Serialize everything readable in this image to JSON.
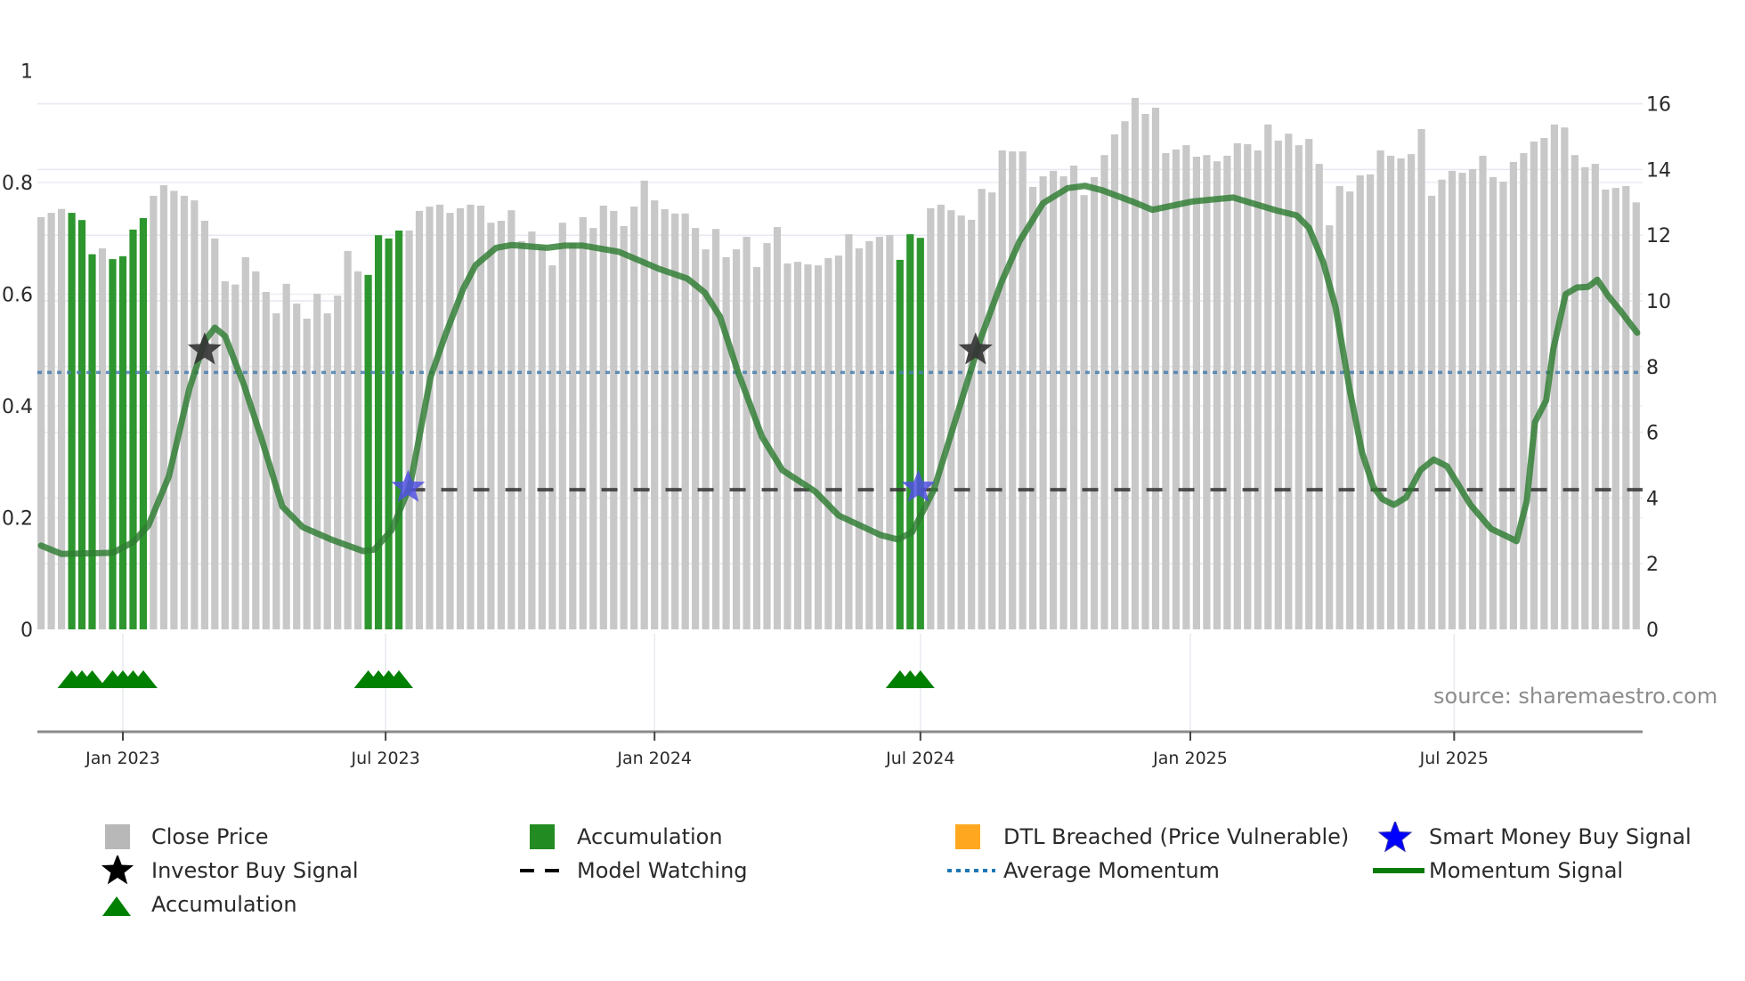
{
  "chart_data": {
    "type": "bar+line",
    "title": "",
    "xlabel": "",
    "ylabel_left": "",
    "ylabel_right": "",
    "left_axis": {
      "range": [
        0,
        1
      ],
      "ticks": [
        0,
        0.2,
        0.4,
        0.6,
        0.8,
        1
      ],
      "tick_labels": [
        "0",
        "0.2",
        "0.4",
        "0.6",
        "0.8",
        "1"
      ]
    },
    "right_axis": {
      "range": [
        0,
        16.5
      ],
      "ticks": [
        0,
        2,
        4,
        6,
        8,
        10,
        12,
        14,
        16
      ],
      "tick_labels": [
        "0",
        "2",
        "4",
        "6",
        "8",
        "10",
        "12",
        "14",
        "16"
      ]
    },
    "x_ticks": [
      {
        "label": "Jan 2023",
        "bar_pos": 9.0
      },
      {
        "label": "Jul 2023",
        "bar_pos": 34.7
      },
      {
        "label": "Jan 2024",
        "bar_pos": 61.0
      },
      {
        "label": "Jul 2024",
        "bar_pos": 87.0
      },
      {
        "label": "Jan 2025",
        "bar_pos": 113.4
      },
      {
        "label": "Jul 2025",
        "bar_pos": 139.2
      }
    ],
    "grid": true,
    "legend_position": "bottom",
    "series": [
      {
        "name": "Close Price",
        "type": "bar",
        "axis": "right",
        "color": "#c8c8c8",
        "values": [
          12.55,
          12.68,
          12.8,
          12.68,
          12.46,
          11.42,
          11.6,
          11.27,
          11.36,
          12.17,
          12.52,
          13.2,
          13.52,
          13.35,
          13.2,
          13.06,
          12.44,
          11.9,
          10.6,
          10.5,
          11.33,
          10.9,
          10.27,
          9.62,
          10.52,
          9.92,
          9.46,
          10.22,
          9.62,
          10.16,
          11.52,
          10.9,
          10.79,
          12.0,
          11.9,
          12.14,
          12.14,
          12.74,
          12.87,
          12.93,
          12.68,
          12.82,
          12.93,
          12.9,
          12.38,
          12.44,
          12.76,
          11.82,
          12.11,
          11.65,
          11.08,
          12.38,
          11.76,
          12.55,
          12.22,
          12.9,
          12.74,
          12.28,
          12.87,
          13.66,
          13.06,
          12.79,
          12.66,
          12.66,
          12.22,
          11.57,
          12.19,
          11.33,
          11.57,
          11.95,
          11.03,
          11.76,
          12.25,
          11.14,
          11.19,
          11.11,
          11.08,
          11.3,
          11.38,
          12.03,
          11.6,
          11.82,
          11.95,
          12.0,
          11.25,
          12.03,
          11.92,
          12.82,
          12.93,
          12.76,
          12.6,
          12.47,
          13.41,
          13.3,
          14.58,
          14.55,
          14.55,
          13.47,
          13.79,
          13.96,
          13.79,
          14.12,
          13.22,
          13.77,
          14.44,
          15.07,
          15.47,
          16.18,
          15.69,
          15.88,
          14.5,
          14.61,
          14.74,
          14.39,
          14.44,
          14.25,
          14.42,
          14.8,
          14.77,
          14.58,
          15.37,
          14.88,
          15.09,
          14.74,
          14.93,
          14.17,
          12.3,
          13.5,
          13.33,
          13.82,
          13.85,
          14.58,
          14.42,
          14.34,
          14.47,
          15.23,
          13.2,
          13.69,
          13.96,
          13.9,
          14.01,
          14.42,
          13.77,
          13.63,
          14.23,
          14.5,
          14.85,
          14.96,
          15.37,
          15.28,
          14.44,
          14.07,
          14.17,
          13.39,
          13.44,
          13.5,
          13.0
        ]
      },
      {
        "name": "Accumulation",
        "type": "bar-highlight",
        "axis": "right",
        "color": "#2e962e",
        "bar_indices": [
          4,
          5,
          6,
          8,
          9,
          10,
          11,
          33,
          34,
          35,
          36,
          85,
          86,
          87
        ]
      },
      {
        "name": "DTL Breached (Price Vulnerable)",
        "type": "bar-highlight",
        "axis": "right",
        "color": "#ffa81f",
        "bar_indices": []
      },
      {
        "name": "Momentum Signal",
        "type": "line",
        "axis": "left",
        "color": "#006400",
        "points": [
          [
            1,
            0.15
          ],
          [
            3,
            0.135
          ],
          [
            8,
            0.137
          ],
          [
            10,
            0.156
          ],
          [
            11.5,
            0.186
          ],
          [
            13.5,
            0.274
          ],
          [
            15.5,
            0.43
          ],
          [
            17,
            0.516
          ],
          [
            18,
            0.54
          ],
          [
            19,
            0.525
          ],
          [
            20.8,
            0.44
          ],
          [
            22.5,
            0.345
          ],
          [
            24.6,
            0.22
          ],
          [
            26.6,
            0.183
          ],
          [
            29.5,
            0.16
          ],
          [
            32.5,
            0.14
          ],
          [
            33.6,
            0.143
          ],
          [
            35.3,
            0.178
          ],
          [
            37.1,
            0.258
          ],
          [
            39.1,
            0.452
          ],
          [
            40.6,
            0.53
          ],
          [
            42.3,
            0.61
          ],
          [
            43.5,
            0.652
          ],
          [
            45.5,
            0.683
          ],
          [
            47,
            0.688
          ],
          [
            50.5,
            0.683
          ],
          [
            52.2,
            0.687
          ],
          [
            54,
            0.687
          ],
          [
            57.5,
            0.676
          ],
          [
            61.5,
            0.645
          ],
          [
            64.2,
            0.628
          ],
          [
            65.9,
            0.603
          ],
          [
            67.4,
            0.56
          ],
          [
            69.1,
            0.464
          ],
          [
            71.5,
            0.345
          ],
          [
            73.5,
            0.285
          ],
          [
            76.7,
            0.247
          ],
          [
            79,
            0.204
          ],
          [
            83.1,
            0.169
          ],
          [
            84.8,
            0.161
          ],
          [
            86.2,
            0.174
          ],
          [
            88.3,
            0.249
          ],
          [
            90.3,
            0.367
          ],
          [
            92.9,
            0.521
          ],
          [
            94.9,
            0.62
          ],
          [
            96.7,
            0.695
          ],
          [
            99,
            0.763
          ],
          [
            101.4,
            0.79
          ],
          [
            103.1,
            0.794
          ],
          [
            104.8,
            0.786
          ],
          [
            107.7,
            0.766
          ],
          [
            109.7,
            0.751
          ],
          [
            113.6,
            0.766
          ],
          [
            117.6,
            0.773
          ],
          [
            121.8,
            0.75
          ],
          [
            123.8,
            0.741
          ],
          [
            125,
            0.719
          ],
          [
            126.4,
            0.657
          ],
          [
            127.6,
            0.577
          ],
          [
            129,
            0.427
          ],
          [
            130.2,
            0.316
          ],
          [
            131.3,
            0.255
          ],
          [
            132.2,
            0.233
          ],
          [
            133.3,
            0.223
          ],
          [
            134.5,
            0.236
          ],
          [
            135.9,
            0.285
          ],
          [
            137.2,
            0.304
          ],
          [
            138.5,
            0.292
          ],
          [
            140.8,
            0.223
          ],
          [
            142.8,
            0.18
          ],
          [
            144.3,
            0.167
          ],
          [
            145.3,
            0.158
          ],
          [
            146.3,
            0.23
          ],
          [
            147.1,
            0.371
          ],
          [
            148.2,
            0.41
          ],
          [
            148.9,
            0.502
          ],
          [
            150.1,
            0.6
          ],
          [
            151.2,
            0.612
          ],
          [
            152.3,
            0.613
          ],
          [
            153.2,
            0.626
          ],
          [
            154.3,
            0.596
          ],
          [
            155.3,
            0.574
          ],
          [
            157.1,
            0.531
          ]
        ]
      },
      {
        "name": "Average Momentum",
        "type": "hline",
        "axis": "left",
        "color": "#4a7fb0",
        "value": 0.46,
        "style": "dotted"
      },
      {
        "name": "Model Watching",
        "type": "hline",
        "axis": "left",
        "color": "#333333",
        "value": 0.25,
        "style": "dashed",
        "start_bar": 37
      },
      {
        "name": "Investor Buy Signal",
        "type": "scatter",
        "marker": "star",
        "axis": "left",
        "color": "#333333",
        "points": [
          [
            17,
            0.5
          ],
          [
            92.4,
            0.5
          ]
        ]
      },
      {
        "name": "Smart Money Buy Signal",
        "type": "scatter",
        "marker": "star",
        "axis": "left",
        "color": "#5050e0",
        "points": [
          [
            36.9,
            0.254
          ],
          [
            86.8,
            0.254
          ]
        ]
      },
      {
        "name": "Accumulation",
        "type": "scatter",
        "marker": "triangle-up",
        "color": "#008000",
        "bar_indices": [
          4,
          5,
          6,
          8,
          9,
          10,
          11,
          33,
          34,
          35,
          36,
          85,
          86,
          87
        ]
      }
    ],
    "annotations": [
      "source: sharemaestro.com"
    ]
  },
  "labels": {
    "source": "source: sharemaestro.com"
  },
  "legend": [
    {
      "label": "Close Price",
      "icon": "gray-square",
      "color": "#b8b8b8"
    },
    {
      "label": "Accumulation",
      "icon": "green-square",
      "color": "#228b22"
    },
    {
      "label": "DTL Breached (Price Vulnerable)",
      "icon": "orange-square",
      "color": "#ffa81f"
    },
    {
      "label": "Smart Money Buy Signal",
      "icon": "blue-star",
      "color": "#0000ff"
    },
    {
      "label": "Investor Buy Signal",
      "icon": "black-star",
      "color": "#000000"
    },
    {
      "label": "Model Watching",
      "icon": "dashed-line",
      "color": "#000000"
    },
    {
      "label": "Average Momentum",
      "icon": "dotted-line",
      "color": "#1f77b4"
    },
    {
      "label": "Momentum Signal",
      "icon": "solid-line",
      "color": "#0a7a0a"
    },
    {
      "label": "Accumulation",
      "icon": "green-triangle",
      "color": "#008000"
    }
  ]
}
